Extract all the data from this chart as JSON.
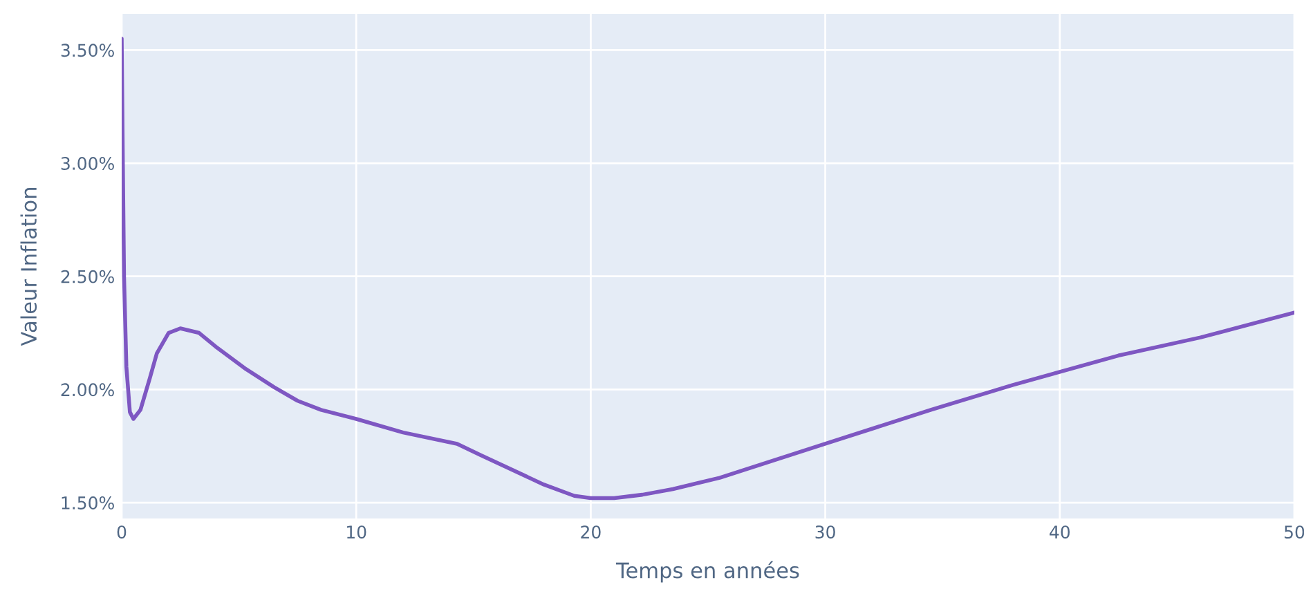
{
  "chart_data": {
    "type": "line",
    "xlabel": "Temps en années",
    "ylabel": "Valeur Inflation",
    "series": [
      {
        "color": "#7e57c2",
        "x": [
          0,
          0.05,
          0.1,
          0.2,
          0.35,
          0.5,
          0.8,
          1.2,
          1.5,
          2,
          2.5,
          3.3,
          4,
          5.3,
          6.5,
          7.5,
          8.5,
          10,
          12,
          14.3,
          15.3,
          18,
          19.3,
          20,
          21,
          22.2,
          23.5,
          25.5,
          30,
          34.5,
          38,
          42.5,
          46,
          50
        ],
        "values": [
          3.55,
          3.0,
          2.5,
          2.1,
          1.9,
          1.87,
          1.91,
          2.05,
          2.16,
          2.25,
          2.27,
          2.25,
          2.19,
          2.09,
          2.01,
          1.95,
          1.91,
          1.87,
          1.81,
          1.76,
          1.71,
          1.58,
          1.53,
          1.52,
          1.52,
          1.535,
          1.56,
          1.61,
          1.76,
          1.91,
          2.02,
          2.15,
          2.23,
          2.34
        ]
      }
    ],
    "xlim": [
      0,
      50
    ],
    "xticks": [
      0,
      10,
      20,
      30,
      40,
      50
    ],
    "ylim": [
      1.43,
      3.66
    ],
    "yticks": [
      {
        "value": 1.5,
        "label": "1.50%"
      },
      {
        "value": 2.0,
        "label": "2.00%"
      },
      {
        "value": 2.5,
        "label": "2.50%"
      },
      {
        "value": 3.0,
        "label": "3.00%"
      },
      {
        "value": 3.5,
        "label": "3.50%"
      }
    ],
    "grid": true,
    "legend": false
  }
}
